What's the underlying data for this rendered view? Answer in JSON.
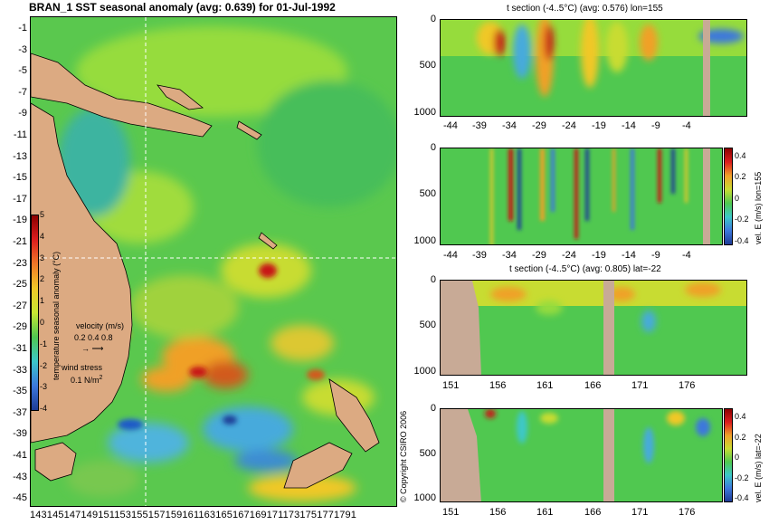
{
  "map": {
    "title": "BRAN_1 SST seasonal anomaly (avg: 0.639) for 01-Jul-1992",
    "lat_ticks": [
      "-1",
      "-3",
      "-5",
      "-7",
      "-9",
      "-11",
      "-13",
      "-15",
      "-17",
      "-19",
      "-21",
      "-23",
      "-25",
      "-27",
      "-29",
      "-31",
      "-33",
      "-35",
      "-37",
      "-39",
      "-41",
      "-43",
      "-45"
    ],
    "lon_ticks": "1431451471491511531551571591611631651671691711731751771791",
    "colorbar_ticks": [
      "5",
      "4",
      "3",
      "2",
      "1",
      "0",
      "-1",
      "-2",
      "-3",
      "-4"
    ],
    "colorbar_label": "temperature seasonal anomaly (°C)",
    "velocity_label": "velocity (m/s)",
    "velocity_values": "0.2 0.4 0.8",
    "wind_label": "wind stress",
    "wind_value": "0.1 N/m",
    "wind_exp": "2",
    "copyright": "© Copyright CSIRO 2006"
  },
  "panels": [
    {
      "title": "t section (-4..5°C) (avg: 0.576) lon=155",
      "y_ticks": [
        "0",
        "500",
        "1000"
      ],
      "x_ticks": [
        "-44",
        "-39",
        "-34",
        "-29",
        "-24",
        "-19",
        "-14",
        "-9",
        "-4"
      ]
    },
    {
      "title": "",
      "y_ticks": [
        "0",
        "500",
        "1000"
      ],
      "x_ticks": [
        "-44",
        "-39",
        "-34",
        "-29",
        "-24",
        "-19",
        "-14",
        "-9",
        "-4"
      ],
      "cbar_ticks": [
        "0.4",
        "0.2",
        "0",
        "-0.2",
        "-0.4"
      ],
      "cbar_label": "vel. E (m/s) lon=155"
    },
    {
      "title": "t section (-4..5°C) (avg: 0.805) lat=-22",
      "y_ticks": [
        "0",
        "500",
        "1000"
      ],
      "x_ticks": [
        "151",
        "156",
        "161",
        "166",
        "171",
        "176"
      ]
    },
    {
      "title": "",
      "y_ticks": [
        "0",
        "500",
        "1000"
      ],
      "x_ticks": [
        "151",
        "156",
        "161",
        "166",
        "171",
        "176"
      ],
      "cbar_ticks": [
        "0.4",
        "0.2",
        "0",
        "-0.2",
        "-0.4"
      ],
      "cbar_label": "vel. E (m/s) lat=-22"
    }
  ],
  "colors": {
    "land": "#dcaa82",
    "anom_high": "#c81414",
    "anom_warm": "#f0a028",
    "anom_zero": "#50c850",
    "anom_cool": "#3c78dc",
    "anom_low": "#1e3c96",
    "section_land": "#c8aa96"
  }
}
